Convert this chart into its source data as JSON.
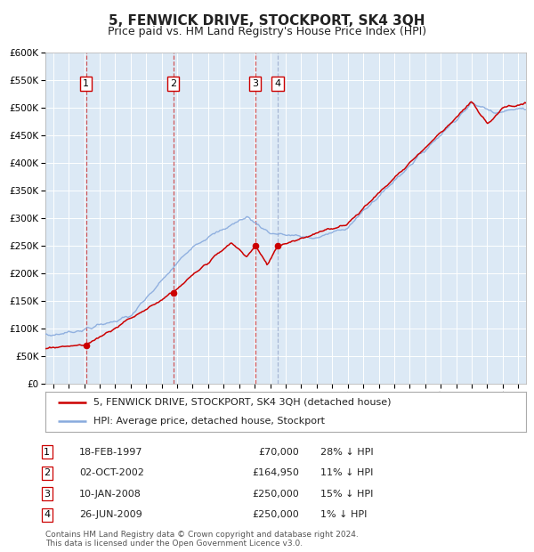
{
  "title": "5, FENWICK DRIVE, STOCKPORT, SK4 3QH",
  "subtitle": "Price paid vs. HM Land Registry's House Price Index (HPI)",
  "ylim": [
    0,
    600000
  ],
  "yticks": [
    0,
    50000,
    100000,
    150000,
    200000,
    250000,
    300000,
    350000,
    400000,
    450000,
    500000,
    550000,
    600000
  ],
  "xlim": [
    1994.5,
    2025.5
  ],
  "background_color": "#dce9f5",
  "sale_color": "#cc0000",
  "hpi_color": "#88aadd",
  "vline_color_solid": "#cc0000",
  "vline_color_dashed": "#aabbdd",
  "sales": [
    {
      "year": 1997.125,
      "price": 70000,
      "label": "1",
      "vline_style": "solid_red"
    },
    {
      "year": 2002.75,
      "price": 164950,
      "label": "2",
      "vline_style": "solid_red"
    },
    {
      "year": 2008.033,
      "price": 250000,
      "label": "3",
      "vline_style": "solid_red"
    },
    {
      "year": 2009.483,
      "price": 250000,
      "label": "4",
      "vline_style": "dashed_blue"
    }
  ],
  "table_rows": [
    {
      "num": "1",
      "date": "18-FEB-1997",
      "price": "£70,000",
      "hpi": "28% ↓ HPI"
    },
    {
      "num": "2",
      "date": "02-OCT-2002",
      "price": "£164,950",
      "hpi": "11% ↓ HPI"
    },
    {
      "num": "3",
      "date": "10-JAN-2008",
      "price": "£250,000",
      "hpi": "15% ↓ HPI"
    },
    {
      "num": "4",
      "date": "26-JUN-2009",
      "price": "£250,000",
      "hpi": "1% ↓ HPI"
    }
  ],
  "legend_sale": "5, FENWICK DRIVE, STOCKPORT, SK4 3QH (detached house)",
  "legend_hpi": "HPI: Average price, detached house, Stockport",
  "footer": "Contains HM Land Registry data © Crown copyright and database right 2024.\nThis data is licensed under the Open Government Licence v3.0.",
  "title_fontsize": 11,
  "subtitle_fontsize": 9
}
